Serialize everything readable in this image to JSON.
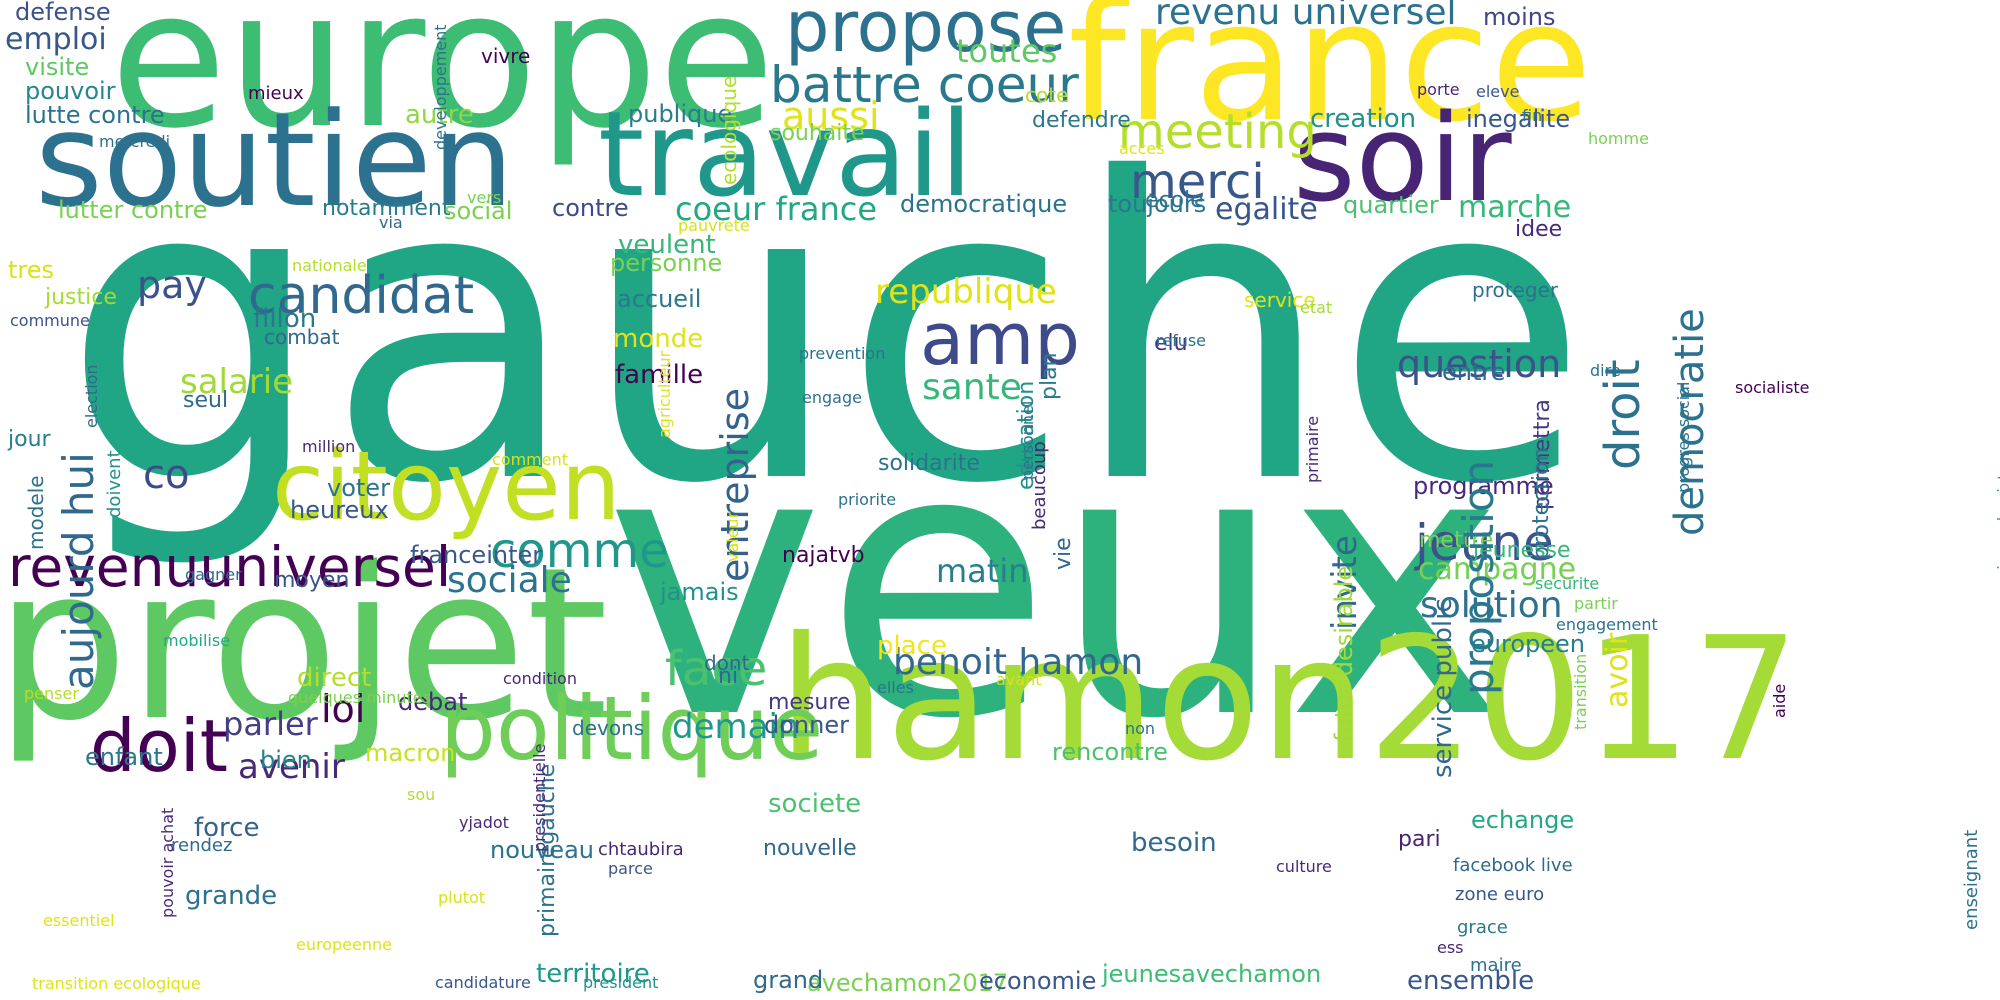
{
  "words": [
    {
      "text": "gauche",
      "color": "#21a685",
      "v": false
    },
    {
      "text": "veux",
      "color": "#2db27d",
      "v": false
    },
    {
      "text": "europe",
      "color": "#3dbc74",
      "v": false
    },
    {
      "text": "france",
      "color": "#fde725",
      "v": false
    },
    {
      "text": "projet",
      "color": "#5ec962",
      "v": false
    },
    {
      "text": "hamon2017",
      "color": "#a5db36",
      "v": false
    },
    {
      "text": "soutien",
      "color": "#2c728e",
      "v": false
    },
    {
      "text": "travail",
      "color": "#1f988b",
      "v": false
    },
    {
      "text": "soir",
      "color": "#482475",
      "v": false
    },
    {
      "text": "citoyen",
      "color": "#c2df23",
      "v": false
    },
    {
      "text": "politique",
      "color": "#6ece58",
      "v": false
    },
    {
      "text": "propose",
      "color": "#2c728e",
      "v": false
    },
    {
      "text": "amp",
      "color": "#3e4a89",
      "v": false
    },
    {
      "text": "doit",
      "color": "#440154",
      "v": false
    },
    {
      "text": "revenuuniversel",
      "color": "#440154",
      "v": false
    },
    {
      "text": "battre coeur",
      "color": "#2a788e",
      "v": false
    },
    {
      "text": "candidat",
      "color": "#31688e",
      "v": false
    },
    {
      "text": "meeting",
      "color": "#b5de2b",
      "v": false
    },
    {
      "text": "merci",
      "color": "#38588c",
      "v": false
    },
    {
      "text": "revenu universel",
      "color": "#2c728e",
      "v": false
    },
    {
      "text": "comme",
      "color": "#1f988b",
      "v": false
    },
    {
      "text": "face",
      "color": "#4ac16d",
      "v": false
    },
    {
      "text": "jeune",
      "color": "#3b528b",
      "v": false
    },
    {
      "text": "benoit hamon",
      "color": "#31688e",
      "v": false
    },
    {
      "text": "coeur france",
      "color": "#22a884",
      "v": false
    },
    {
      "text": "republique",
      "color": "#dfe318",
      "v": false
    },
    {
      "text": "sociale",
      "color": "#2c728e",
      "v": false
    },
    {
      "text": "sante",
      "color": "#35b779",
      "v": false
    },
    {
      "text": "question",
      "color": "#3b528b",
      "v": false
    },
    {
      "text": "solution",
      "color": "#2c728e",
      "v": false
    },
    {
      "text": "salarie",
      "color": "#a0da39",
      "v": false
    },
    {
      "text": "emploi",
      "color": "#38588c",
      "v": false
    },
    {
      "text": "aussi",
      "color": "#dfe318",
      "v": false
    },
    {
      "text": "toutes",
      "color": "#5ec962",
      "v": false
    },
    {
      "text": "pay",
      "color": "#3b528b",
      "v": false
    },
    {
      "text": "co",
      "color": "#3e4a89",
      "v": false
    },
    {
      "text": "loi",
      "color": "#440154",
      "v": false
    },
    {
      "text": "avenir",
      "color": "#482878",
      "v": false
    },
    {
      "text": "parler",
      "color": "#433e85",
      "v": false
    },
    {
      "text": "demain",
      "color": "#1f988b",
      "v": false
    },
    {
      "text": "matin",
      "color": "#277f8e",
      "v": false
    },
    {
      "text": "campagne",
      "color": "#75d054",
      "v": false
    },
    {
      "text": "egalite",
      "color": "#39568c",
      "v": false
    },
    {
      "text": "marche",
      "color": "#35b779",
      "v": false
    },
    {
      "text": "fillon",
      "color": "#2a788e",
      "v": false
    },
    {
      "text": "veulent",
      "color": "#35b779",
      "v": false
    },
    {
      "text": "accueil",
      "color": "#2a788e",
      "v": false
    },
    {
      "text": "famille",
      "color": "#440154",
      "v": false
    },
    {
      "text": "monde",
      "color": "#dfe318",
      "v": false
    },
    {
      "text": "personne",
      "color": "#7ad151",
      "v": false
    },
    {
      "text": "publique",
      "color": "#287c8e",
      "v": false
    },
    {
      "text": "autre",
      "color": "#8fd744",
      "v": false
    },
    {
      "text": "creation",
      "color": "#21918c",
      "v": false
    },
    {
      "text": "inegalite",
      "color": "#39568c",
      "v": false
    },
    {
      "text": "toujours",
      "color": "#2a788e",
      "v": false
    },
    {
      "text": "quartier",
      "color": "#4ac16d",
      "v": false
    },
    {
      "text": "moins",
      "color": "#414487",
      "v": false
    },
    {
      "text": "defendre",
      "color": "#2a788e",
      "v": false
    },
    {
      "text": "democratique",
      "color": "#2c728e",
      "v": false
    },
    {
      "text": "notamment",
      "color": "#287c8e",
      "v": false
    },
    {
      "text": "social",
      "color": "#7ad151",
      "v": false
    },
    {
      "text": "contre",
      "color": "#3e4a89",
      "v": false
    },
    {
      "text": "lutte contre",
      "color": "#2c728e",
      "v": false
    },
    {
      "text": "lutter contre",
      "color": "#7ad151",
      "v": false
    },
    {
      "text": "pouvoir",
      "color": "#24868e",
      "v": false
    },
    {
      "text": "visite",
      "color": "#5ec962",
      "v": false
    },
    {
      "text": "defense",
      "color": "#3b528b",
      "v": false
    },
    {
      "text": "tres",
      "color": "#d8e219",
      "v": false
    },
    {
      "text": "justice",
      "color": "#a5db36",
      "v": false
    },
    {
      "text": "commune",
      "color": "#3b528b",
      "v": false
    },
    {
      "text": "combat",
      "color": "#31688e",
      "v": false
    },
    {
      "text": "seul",
      "color": "#31688e",
      "v": false
    },
    {
      "text": "jour",
      "color": "#277f8e",
      "v": false
    },
    {
      "text": "heureux",
      "color": "#38588c",
      "v": false
    },
    {
      "text": "voter",
      "color": "#2c728e",
      "v": false
    },
    {
      "text": "moyen",
      "color": "#39568c",
      "v": false
    },
    {
      "text": "franceinter",
      "color": "#38588c",
      "v": false
    },
    {
      "text": "jamais",
      "color": "#21918c",
      "v": false
    },
    {
      "text": "direct",
      "color": "#b5de2b",
      "v": false
    },
    {
      "text": "debat",
      "color": "#482878",
      "v": false
    },
    {
      "text": "enfant",
      "color": "#2a788e",
      "v": false
    },
    {
      "text": "bien",
      "color": "#25838e",
      "v": false
    },
    {
      "text": "macron",
      "color": "#c8e020",
      "v": false
    },
    {
      "text": "force",
      "color": "#33638d",
      "v": false
    },
    {
      "text": "grande",
      "color": "#2c728e",
      "v": false
    },
    {
      "text": "nouveau",
      "color": "#2c728e",
      "v": false
    },
    {
      "text": "territoire",
      "color": "#1f988b",
      "v": false
    },
    {
      "text": "avechamon2017",
      "color": "#7ad151",
      "v": false
    },
    {
      "text": "economie",
      "color": "#38588c",
      "v": false
    },
    {
      "text": "jeunesavechamon",
      "color": "#3dbc74",
      "v": false
    },
    {
      "text": "ensemble",
      "color": "#38588c",
      "v": false
    },
    {
      "text": "besoin",
      "color": "#31688e",
      "v": false
    },
    {
      "text": "rencontre",
      "color": "#4ac16d",
      "v": false
    },
    {
      "text": "mesure",
      "color": "#453882",
      "v": false
    },
    {
      "text": "donner",
      "color": "#39568c",
      "v": false
    },
    {
      "text": "societe",
      "color": "#4ac16d",
      "v": false
    },
    {
      "text": "nouvelle",
      "color": "#31688e",
      "v": false
    },
    {
      "text": "grand",
      "color": "#31688e",
      "v": false
    },
    {
      "text": "najatvb",
      "color": "#440154",
      "v": false
    },
    {
      "text": "solidarite",
      "color": "#2c728e",
      "v": false
    },
    {
      "text": "place",
      "color": "#f1e51d",
      "v": false
    },
    {
      "text": "echange",
      "color": "#22a884",
      "v": false
    },
    {
      "text": "pari",
      "color": "#482475",
      "v": false
    },
    {
      "text": "europeen",
      "color": "#277f8e",
      "v": false
    },
    {
      "text": "jeunesse",
      "color": "#35b779",
      "v": false
    },
    {
      "text": "mettre",
      "color": "#7ad151",
      "v": false
    },
    {
      "text": "programme",
      "color": "#482878",
      "v": false
    },
    {
      "text": "entre",
      "color": "#31688e",
      "v": false
    },
    {
      "text": "elu",
      "color": "#453882",
      "v": false
    },
    {
      "text": "ecole",
      "color": "#2c728e",
      "v": false
    },
    {
      "text": "service",
      "color": "#dfe318",
      "v": false
    },
    {
      "text": "proteger",
      "color": "#2c728e",
      "v": false
    },
    {
      "text": "idee",
      "color": "#482878",
      "v": false
    },
    {
      "text": "ni",
      "color": "#31688e",
      "v": false
    },
    {
      "text": "dont",
      "color": "#31688e",
      "v": false
    },
    {
      "text": "devons",
      "color": "#2c728e",
      "v": false
    },
    {
      "text": "souhaite",
      "color": "#7ad151",
      "v": false
    },
    {
      "text": "vivre",
      "color": "#440154",
      "v": false
    },
    {
      "text": "mieux",
      "color": "#440154",
      "v": false
    },
    {
      "text": "cote",
      "color": "#b5de2b",
      "v": false
    },
    {
      "text": "facebook live",
      "color": "#31688e",
      "v": false
    },
    {
      "text": "zone euro",
      "color": "#39568c",
      "v": false
    },
    {
      "text": "grace",
      "color": "#2a788e",
      "v": false
    },
    {
      "text": "maire",
      "color": "#2c728e",
      "v": false
    },
    {
      "text": "ess",
      "color": "#482878",
      "v": false
    },
    {
      "text": "rendez",
      "color": "#31688e",
      "v": false
    },
    {
      "text": "chtaubira",
      "color": "#482878",
      "v": false
    },
    {
      "text": "parce",
      "color": "#39568c",
      "v": false
    },
    {
      "text": "culture",
      "color": "#482878",
      "v": false
    },
    {
      "text": "mercredi",
      "color": "#2c728e",
      "v": false
    },
    {
      "text": "acces",
      "color": "#dfe318",
      "v": false
    },
    {
      "text": "porte",
      "color": "#482878",
      "v": false
    },
    {
      "text": "eleve",
      "color": "#39568c",
      "v": false
    },
    {
      "text": "fin",
      "color": "#2c728e",
      "v": false
    },
    {
      "text": "homme",
      "color": "#7ad151",
      "v": false
    },
    {
      "text": "vers",
      "color": "#75d054",
      "v": false
    },
    {
      "text": "via",
      "color": "#31688e",
      "v": false
    },
    {
      "text": "pauvrete",
      "color": "#d8e219",
      "v": false
    },
    {
      "text": "nationale",
      "color": "#b5de2b",
      "v": false
    },
    {
      "text": "etat",
      "color": "#a5db36",
      "v": false
    },
    {
      "text": "refuse",
      "color": "#2c728e",
      "v": false
    },
    {
      "text": "dire",
      "color": "#2c728e",
      "v": false
    },
    {
      "text": "socialiste",
      "color": "#440154",
      "v": false
    },
    {
      "text": "prevention",
      "color": "#2c728e",
      "v": false
    },
    {
      "text": "engage",
      "color": "#2c728e",
      "v": false
    },
    {
      "text": "million",
      "color": "#482878",
      "v": false
    },
    {
      "text": "comment",
      "color": "#d8e219",
      "v": false
    },
    {
      "text": "priorite",
      "color": "#2c728e",
      "v": false
    },
    {
      "text": "gagner",
      "color": "#31688e",
      "v": false
    },
    {
      "text": "mobilise",
      "color": "#22a884",
      "v": false
    },
    {
      "text": "penser",
      "color": "#b5de2b",
      "v": false
    },
    {
      "text": "condition",
      "color": "#482878",
      "v": false
    },
    {
      "text": "quelques minutes",
      "color": "#7ad151",
      "v": false
    },
    {
      "text": "avant",
      "color": "#d8e219",
      "v": false
    },
    {
      "text": "elles",
      "color": "#2c728e",
      "v": false
    },
    {
      "text": "non",
      "color": "#2c728e",
      "v": false
    },
    {
      "text": "securite",
      "color": "#35b779",
      "v": false
    },
    {
      "text": "partir",
      "color": "#7ad151",
      "v": false
    },
    {
      "text": "engagement",
      "color": "#2c728e",
      "v": false
    },
    {
      "text": "sou",
      "color": "#b5de2b",
      "v": false
    },
    {
      "text": "yjadot",
      "color": "#482878",
      "v": false
    },
    {
      "text": "plutot",
      "color": "#d8e219",
      "v": false
    },
    {
      "text": "essentiel",
      "color": "#dfe318",
      "v": false
    },
    {
      "text": "europeenne",
      "color": "#dfe318",
      "v": false
    },
    {
      "text": "candidature",
      "color": "#39568c",
      "v": false
    },
    {
      "text": "president",
      "color": "#21918c",
      "v": false
    },
    {
      "text": "transition ecologique",
      "color": "#dfe318",
      "v": false
    },
    {
      "text": "aujourd hui",
      "color": "#31688e",
      "v": true
    },
    {
      "text": "entreprise",
      "color": "#33638d",
      "v": true
    },
    {
      "text": "proposition",
      "color": "#2a788e",
      "v": true
    },
    {
      "text": "droit",
      "color": "#2c728e",
      "v": true
    },
    {
      "text": "democratie",
      "color": "#2c728e",
      "v": true
    },
    {
      "text": "invite",
      "color": "#31688e",
      "v": true
    },
    {
      "text": "avoir",
      "color": "#dfe318",
      "v": true
    },
    {
      "text": "futur desirable",
      "color": "#a0da39",
      "v": true
    },
    {
      "text": "service public",
      "color": "#31688e",
      "v": true
    },
    {
      "text": "permettra",
      "color": "#453882",
      "v": true
    },
    {
      "text": "protection",
      "color": "#2c728e",
      "v": true
    },
    {
      "text": "primairegauche",
      "color": "#2c728e",
      "v": true
    },
    {
      "text": "education",
      "color": "#21918c",
      "v": true
    },
    {
      "text": "plan",
      "color": "#287c8e",
      "v": true
    },
    {
      "text": "beaucoup",
      "color": "#482878",
      "v": true
    },
    {
      "text": "vie",
      "color": "#31688e",
      "v": true
    },
    {
      "text": "modele",
      "color": "#2c728e",
      "v": true
    },
    {
      "text": "doivent",
      "color": "#21918c",
      "v": true
    },
    {
      "text": "election",
      "color": "#31688e",
      "v": true
    },
    {
      "text": "developpement",
      "color": "#2c728e",
      "v": true
    },
    {
      "text": "ecologique",
      "color": "#b5de2b",
      "v": true
    },
    {
      "text": "agriculteur",
      "color": "#dfe318",
      "v": true
    },
    {
      "text": "valeur",
      "color": "#d8e219",
      "v": true
    },
    {
      "text": "presidentielle",
      "color": "#482878",
      "v": true
    },
    {
      "text": "pouvoir achat",
      "color": "#482878",
      "v": true
    },
    {
      "text": "personnel",
      "color": "#2c728e",
      "v": true
    },
    {
      "text": "primaire",
      "color": "#482878",
      "v": true
    },
    {
      "text": "progres social",
      "color": "#2c728e",
      "v": true
    },
    {
      "text": "transition",
      "color": "#7ad151",
      "v": true
    },
    {
      "text": "aide",
      "color": "#440154",
      "v": true
    },
    {
      "text": "universel existence",
      "color": "#22a884",
      "v": true
    },
    {
      "text": "enseignant",
      "color": "#2c728e",
      "v": true
    }
  ]
}
